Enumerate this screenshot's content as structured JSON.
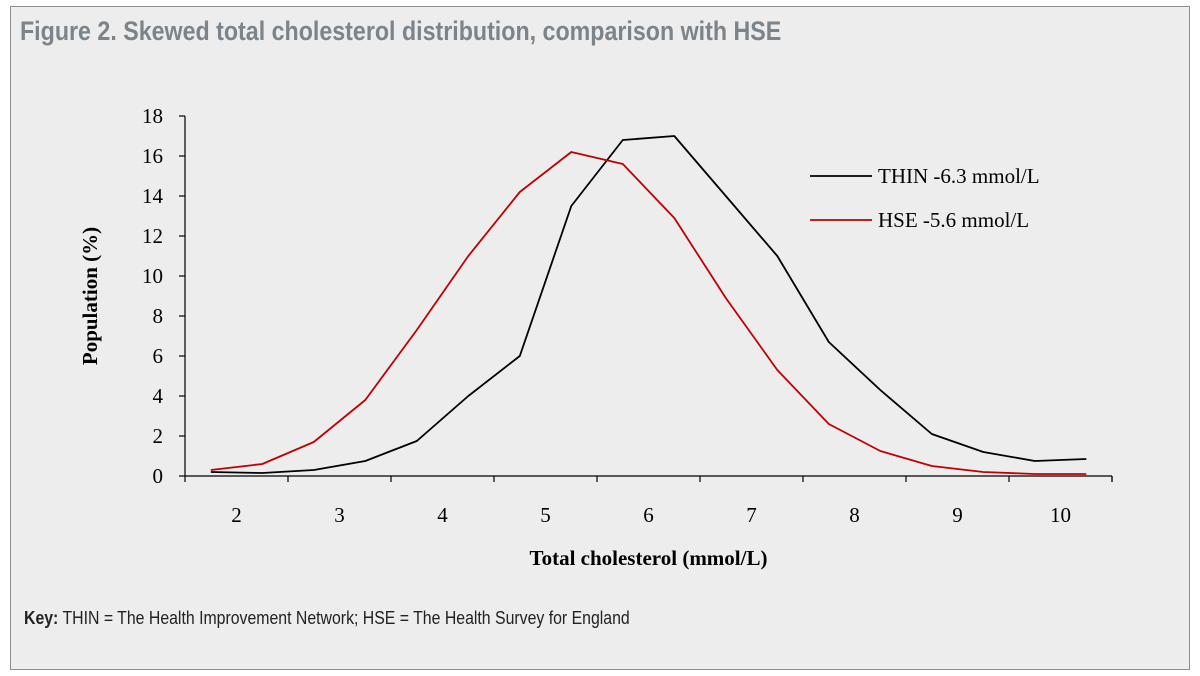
{
  "figure": {
    "title": "Figure 2. Skewed total cholesterol distribution, comparison with HSE",
    "key_label": "Key:",
    "key_text": "THIN = The Health Improvement Network; HSE = The Health Survey for England"
  },
  "colors": {
    "background": "#ededed",
    "title": "#7d8489",
    "thin": "#000000",
    "hse": "#c00000"
  },
  "chart_data": {
    "type": "line",
    "title": "",
    "xlabel": "Total cholesterol (mmol/L)",
    "ylabel": "Population (%)",
    "xlim": [
      1.5,
      10.5
    ],
    "ylim": [
      0,
      18
    ],
    "x_ticks": [
      2,
      3,
      4,
      5,
      6,
      7,
      8,
      9,
      10
    ],
    "y_ticks": [
      0,
      2,
      4,
      6,
      8,
      10,
      12,
      14,
      16,
      18
    ],
    "grid": false,
    "legend_position": "top-right",
    "series": [
      {
        "name": "THIN -6.3 mmol/L",
        "color": "#000000",
        "x": [
          1.75,
          2.25,
          2.75,
          3.25,
          3.75,
          4.25,
          4.75,
          5.25,
          5.75,
          6.25,
          6.75,
          7.25,
          7.75,
          8.25,
          8.75,
          9.25,
          9.75,
          10.25
        ],
        "y": [
          0.2,
          0.15,
          0.3,
          0.75,
          1.75,
          4.0,
          6.0,
          13.5,
          16.8,
          17.0,
          14.0,
          11.0,
          6.7,
          4.3,
          2.1,
          1.2,
          0.75,
          0.85
        ]
      },
      {
        "name": "HSE -5.6 mmol/L",
        "color": "#c00000",
        "x": [
          1.75,
          2.25,
          2.75,
          3.25,
          3.75,
          4.25,
          4.75,
          5.25,
          5.75,
          6.25,
          6.75,
          7.25,
          7.75,
          8.25,
          8.75,
          9.25,
          9.75,
          10.25
        ],
        "y": [
          0.3,
          0.6,
          1.7,
          3.8,
          7.3,
          11.0,
          14.2,
          16.2,
          15.6,
          12.9,
          8.9,
          5.3,
          2.6,
          1.25,
          0.5,
          0.2,
          0.1,
          0.1
        ]
      }
    ]
  }
}
